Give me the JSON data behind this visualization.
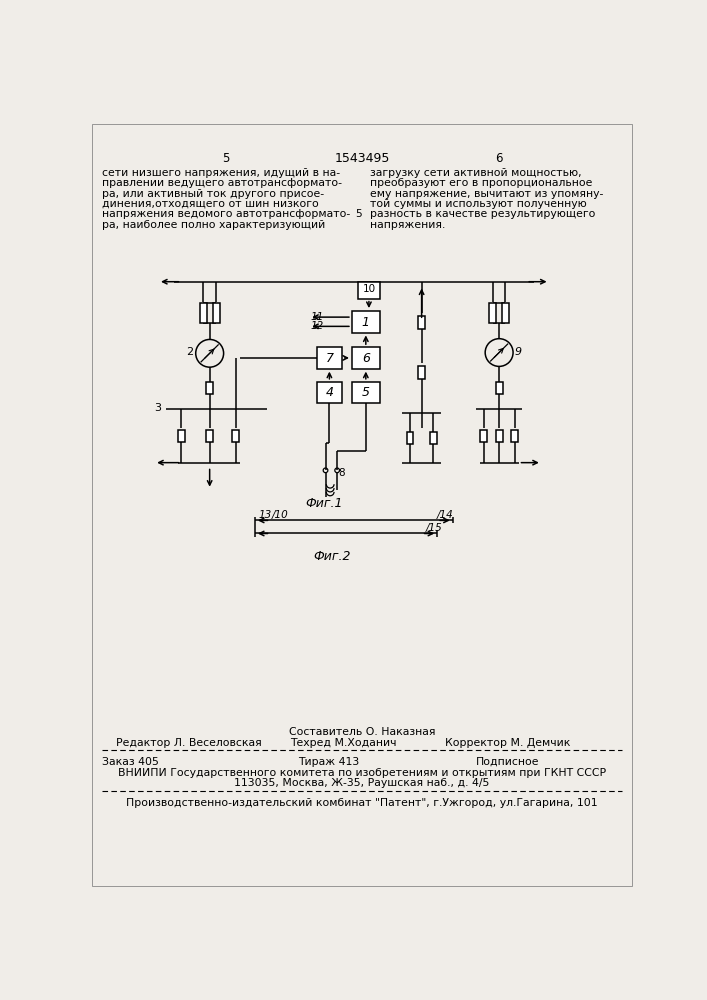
{
  "bg_color": "#f0ede8",
  "page_number_left": "5",
  "page_number_center": "1543495",
  "page_number_right": "6",
  "text_col1": [
    "сети низшего напряжения, идущий в на-",
    "правлении ведущего автотрансформато-",
    "ра, или активный ток другого присое-",
    "динения,отходящего от шин низкого",
    "напряжения ведомого автотрансформато-",
    "ра, наиболее полно характеризующий"
  ],
  "text_col2": [
    "загрузку сети активной мощностью,",
    "преобразуют его в пропорциональное",
    "ему напряжение, вычитают из упомяну-",
    "той суммы и используют полученную",
    "разность в качестве результирующего",
    "напряжения."
  ],
  "middle_number": "5",
  "fig1_label": "Фиг.1",
  "fig2_label": "Фиг.2",
  "footer_sestavitel": "Составитель О. Наказная",
  "footer_redaktor": "Редактор Л. Веселовская",
  "footer_tehred": "Техред М.Ходанич",
  "footer_korrektor": "Корректор М. Демчик",
  "footer_zakaz": "Заказ 405",
  "footer_tirazh": "Тираж 413",
  "footer_podpisnoe": "Подписное",
  "footer_vniiipi": "ВНИИПИ Государственного комитета по изобретениям и открытиям при ГКНТ СССР",
  "footer_address": "113035, Москва, Ж-35, Раушская наб., д. 4/5",
  "footer_kombnat": "Производственно-издательский комбинат \"Патент\", г.Ужгород, ул.Гагарина, 101"
}
